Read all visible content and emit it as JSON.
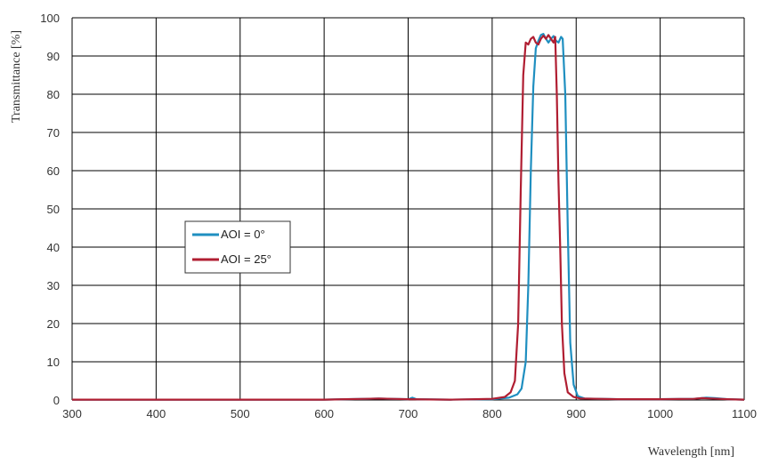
{
  "chart_data": {
    "type": "line",
    "title": "",
    "xlabel": "Wavelength [nm]",
    "ylabel": "Transmittance [%]",
    "xlim": [
      300,
      1100
    ],
    "ylim": [
      0,
      100
    ],
    "xticks": [
      300,
      400,
      500,
      600,
      700,
      800,
      900,
      1000,
      1100
    ],
    "yticks": [
      0,
      10,
      20,
      30,
      40,
      50,
      60,
      70,
      80,
      90,
      100
    ],
    "grid": true,
    "legend": {
      "position": "left-middle",
      "entries": [
        "AOI = 0°",
        "AOI = 25°"
      ]
    },
    "series": [
      {
        "name": "AOI = 0°",
        "color": "#1f8fc0",
        "points": [
          [
            300,
            0.1
          ],
          [
            600,
            0.1
          ],
          [
            650,
            0.3
          ],
          [
            665,
            0.4
          ],
          [
            680,
            0.3
          ],
          [
            700,
            0.2
          ],
          [
            705,
            0.6
          ],
          [
            710,
            0.2
          ],
          [
            750,
            0.1
          ],
          [
            800,
            0.2
          ],
          [
            820,
            0.6
          ],
          [
            830,
            1.5
          ],
          [
            835,
            3.0
          ],
          [
            840,
            10
          ],
          [
            843,
            30
          ],
          [
            846,
            60
          ],
          [
            849,
            82
          ],
          [
            852,
            92
          ],
          [
            855,
            94
          ],
          [
            858,
            95.5
          ],
          [
            861,
            95.8
          ],
          [
            864,
            94.5
          ],
          [
            867,
            93.5
          ],
          [
            870,
            94.5
          ],
          [
            873,
            95.2
          ],
          [
            876,
            94.0
          ],
          [
            879,
            93.5
          ],
          [
            882,
            95.0
          ],
          [
            884,
            94.5
          ],
          [
            887,
            80
          ],
          [
            890,
            45
          ],
          [
            893,
            15
          ],
          [
            897,
            4
          ],
          [
            902,
            1.0
          ],
          [
            910,
            0.4
          ],
          [
            950,
            0.2
          ],
          [
            1000,
            0.2
          ],
          [
            1040,
            0.3
          ],
          [
            1055,
            0.6
          ],
          [
            1065,
            0.5
          ],
          [
            1080,
            0.2
          ],
          [
            1100,
            0.1
          ]
        ]
      },
      {
        "name": "AOI = 25°",
        "color": "#b01e32",
        "points": [
          [
            300,
            0.1
          ],
          [
            600,
            0.1
          ],
          [
            650,
            0.3
          ],
          [
            665,
            0.4
          ],
          [
            680,
            0.3
          ],
          [
            700,
            0.2
          ],
          [
            750,
            0.1
          ],
          [
            780,
            0.2
          ],
          [
            800,
            0.3
          ],
          [
            815,
            0.8
          ],
          [
            822,
            2.0
          ],
          [
            827,
            5.0
          ],
          [
            831,
            20
          ],
          [
            834,
            55
          ],
          [
            837,
            85
          ],
          [
            840,
            93.5
          ],
          [
            843,
            93.0
          ],
          [
            846,
            94.5
          ],
          [
            849,
            95.0
          ],
          [
            852,
            93.5
          ],
          [
            855,
            93.0
          ],
          [
            858,
            94.5
          ],
          [
            861,
            95.3
          ],
          [
            864,
            94.5
          ],
          [
            867,
            95.5
          ],
          [
            870,
            94.5
          ],
          [
            873,
            93.5
          ],
          [
            875,
            95.0
          ],
          [
            877,
            80
          ],
          [
            879,
            57
          ],
          [
            881,
            40
          ],
          [
            883,
            20
          ],
          [
            886,
            7
          ],
          [
            890,
            2
          ],
          [
            897,
            0.8
          ],
          [
            905,
            0.4
          ],
          [
            950,
            0.2
          ],
          [
            1000,
            0.2
          ],
          [
            1040,
            0.3
          ],
          [
            1050,
            0.5
          ],
          [
            1060,
            0.4
          ],
          [
            1080,
            0.2
          ],
          [
            1100,
            0.1
          ]
        ]
      }
    ]
  }
}
